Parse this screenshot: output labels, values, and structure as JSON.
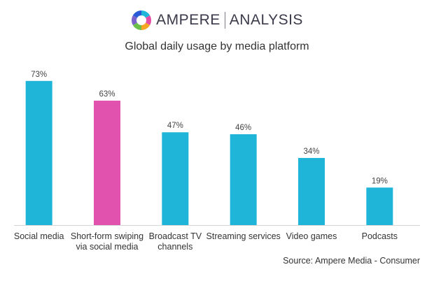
{
  "brand": {
    "name": "AMPERE",
    "sub": "ANALYSIS",
    "logo_colors": [
      "#1fb5d9",
      "#e64da6",
      "#f6a623",
      "#6cc04a",
      "#7b61c9",
      "#2a5bd7"
    ]
  },
  "source": "Source: Ampere Media - Consumer",
  "chart_data": {
    "type": "bar",
    "title": "Global daily usage by media platform",
    "categories": [
      [
        "Social media"
      ],
      [
        "Short-form swiping",
        "via social media"
      ],
      [
        "Broadcast TV",
        "channels"
      ],
      [
        "Streaming services"
      ],
      [
        "Video games"
      ],
      [
        "Podcasts"
      ]
    ],
    "values": [
      73,
      63,
      47,
      46,
      34,
      19
    ],
    "value_labels": [
      "73%",
      "63%",
      "47%",
      "46%",
      "34%",
      "19%"
    ],
    "colors": [
      "#1fb5d9",
      "#e052ad",
      "#1fb5d9",
      "#1fb5d9",
      "#1fb5d9",
      "#1fb5d9"
    ],
    "ylim": [
      0,
      80
    ],
    "grid": false,
    "legend": false
  }
}
